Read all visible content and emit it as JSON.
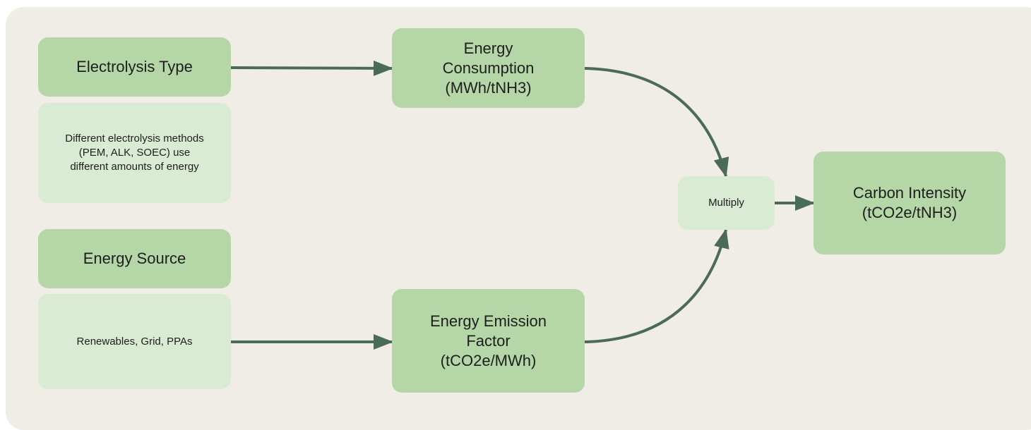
{
  "nodes": [
    {
      "label": "Electrolysis Type"
    },
    {
      "label": "Different electrolysis methods (PEM, ALK, SOEC) use different amounts of energy"
    },
    {
      "label": "Energy Source"
    },
    {
      "label": "Renewables, Grid, PPAs"
    },
    {
      "label": "Energy Consumption",
      "unit": "(MWh/tNH3)"
    },
    {
      "label": "Energy Emission Factor",
      "unit": "(tCO2e/MWh)"
    },
    {
      "label": "Multiply"
    },
    {
      "label": "Carbon Intensity",
      "unit": "(tCO2e/tNH3)"
    }
  ]
}
